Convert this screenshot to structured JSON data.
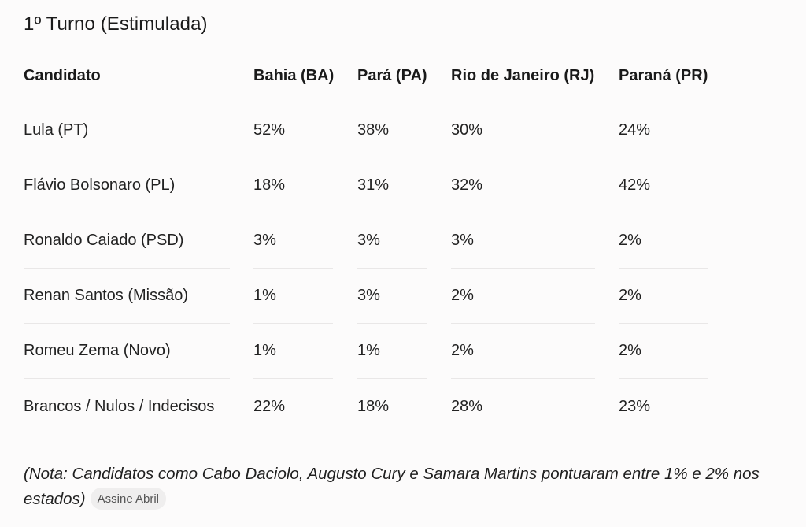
{
  "title": "1º Turno (Estimulada)",
  "table": {
    "headers": [
      "Candidato",
      "Bahia (BA)",
      "Pará (PA)",
      "Rio de Janeiro (RJ)",
      "Paraná (PR)"
    ],
    "rows": [
      [
        "Lula (PT)",
        "52%",
        "38%",
        "30%",
        "24%"
      ],
      [
        "Flávio Bolsonaro (PL)",
        "18%",
        "31%",
        "32%",
        "42%"
      ],
      [
        "Ronaldo Caiado (PSD)",
        "3%",
        "3%",
        "3%",
        "2%"
      ],
      [
        "Renan Santos (Missão)",
        "1%",
        "3%",
        "2%",
        "2%"
      ],
      [
        "Romeu Zema (Novo)",
        "1%",
        "1%",
        "2%",
        "2%"
      ],
      [
        "Brancos / Nulos / Indecisos",
        "22%",
        "18%",
        "28%",
        "23%"
      ]
    ]
  },
  "note": {
    "text": "(Nota: Candidatos como Cabo Daciolo, Augusto Cury e Samara Martins pontuaram entre 1% e 2% nos estados)",
    "source_badge": "Assine Abril"
  },
  "colors": {
    "background": "#fcfbfb",
    "divider": "#e9e7e7",
    "badge_background": "#efeeee"
  }
}
